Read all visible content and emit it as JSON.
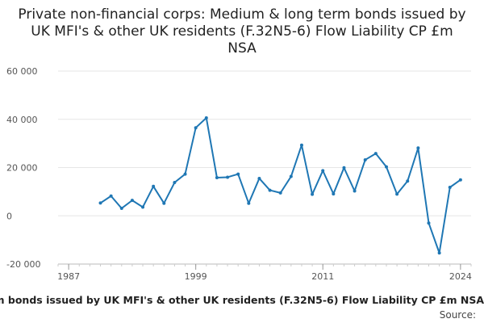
{
  "chart_data": {
    "type": "line",
    "title": "Private non-financial corps: Medium & long term bonds issued by UK MFI's & other UK residents (F.32N5-6) Flow Liability CP £m NSA",
    "xlabel": "",
    "ylabel": "",
    "xlim": [
      1986,
      2025
    ],
    "ylim": [
      -20000,
      60000
    ],
    "x_ticks": [
      1987,
      1999,
      2011,
      2024
    ],
    "x_tick_labels": [
      "1987",
      "1999",
      "2011",
      "2024"
    ],
    "y_ticks": [
      -20000,
      0,
      20000,
      40000,
      60000
    ],
    "y_tick_labels": [
      "-20 000",
      "0",
      "20 000",
      "40 000",
      "60 000"
    ],
    "grid": true,
    "legend_placement": "bottom",
    "series": [
      {
        "name": "Private non-financial corps: Medium & long term bonds issued by UK MFI's & other UK residents (F.32N5-6) Flow Liability CP £m NSA",
        "color": "#1f77b4",
        "x": [
          1990,
          1991,
          1992,
          1993,
          1994,
          1995,
          1996,
          1997,
          1998,
          1999,
          2000,
          2001,
          2002,
          2003,
          2004,
          2005,
          2006,
          2007,
          2008,
          2009,
          2010,
          2011,
          2012,
          2013,
          2014,
          2015,
          2016,
          2017,
          2018,
          2019,
          2020,
          2021,
          2022,
          2023,
          2024
        ],
        "y": [
          5300,
          8200,
          3100,
          6400,
          3600,
          12200,
          5200,
          13800,
          17300,
          36500,
          40600,
          15800,
          16000,
          17300,
          5200,
          15500,
          10600,
          9500,
          16300,
          29300,
          8900,
          18700,
          9100,
          19900,
          10300,
          23200,
          25800,
          20300,
          9000,
          14400,
          28100,
          -3000,
          -15400,
          11800,
          14900
        ]
      }
    ]
  },
  "legend": {
    "text": "Private non-financial corps: Medium & long term bonds issued by UK MFI's & other UK residents (F.32N5-6) Flow Liability CP £m NSA"
  },
  "source": {
    "label": "Source:"
  }
}
